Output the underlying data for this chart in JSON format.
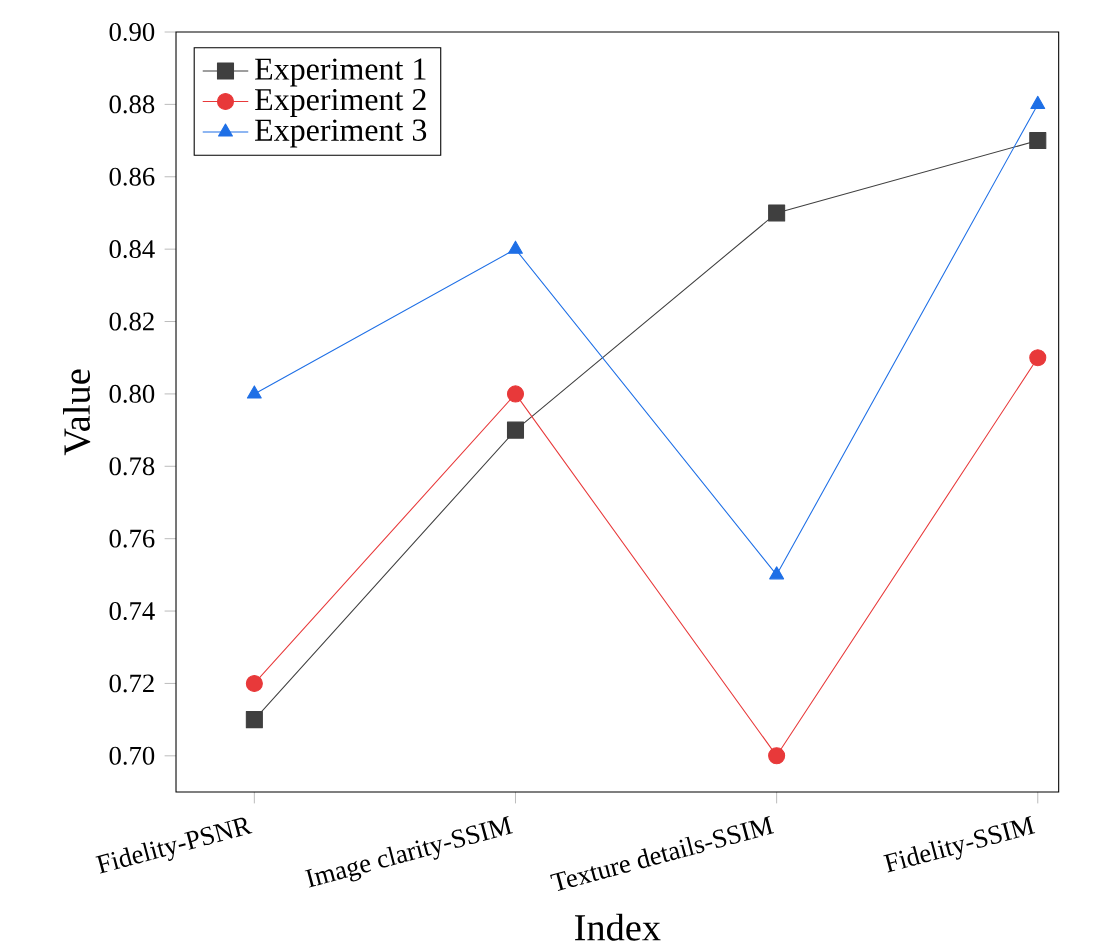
{
  "chart_data": {
    "type": "line",
    "xlabel": "Index",
    "ylabel": "Value",
    "categories": [
      "Fidelity-PSNR",
      "Image clarity-SSIM",
      "Texture details-SSIM",
      "Fidelity-SSIM"
    ],
    "series": [
      {
        "name": "Experiment 1",
        "color": "#3f3f3f",
        "marker": "square",
        "values": [
          0.71,
          0.79,
          0.85,
          0.87
        ]
      },
      {
        "name": "Experiment 2",
        "color": "#e8393a",
        "marker": "circle",
        "values": [
          0.72,
          0.8,
          0.7,
          0.81
        ]
      },
      {
        "name": "Experiment 3",
        "color": "#1e6fe6",
        "marker": "triangle",
        "values": [
          0.8,
          0.84,
          0.75,
          0.88
        ]
      }
    ],
    "ylim": [
      0.69,
      0.9
    ],
    "yticks": [
      {
        "value": 0.7,
        "label": "0.70"
      },
      0.72,
      0.74,
      0.76,
      0.78,
      {
        "value": 0.8,
        "label": "0.80"
      },
      0.82,
      0.84,
      0.86,
      0.88,
      {
        "value": 0.9,
        "label": "0.90"
      }
    ],
    "legend": "top left",
    "grid": false,
    "line_style": "solid"
  }
}
